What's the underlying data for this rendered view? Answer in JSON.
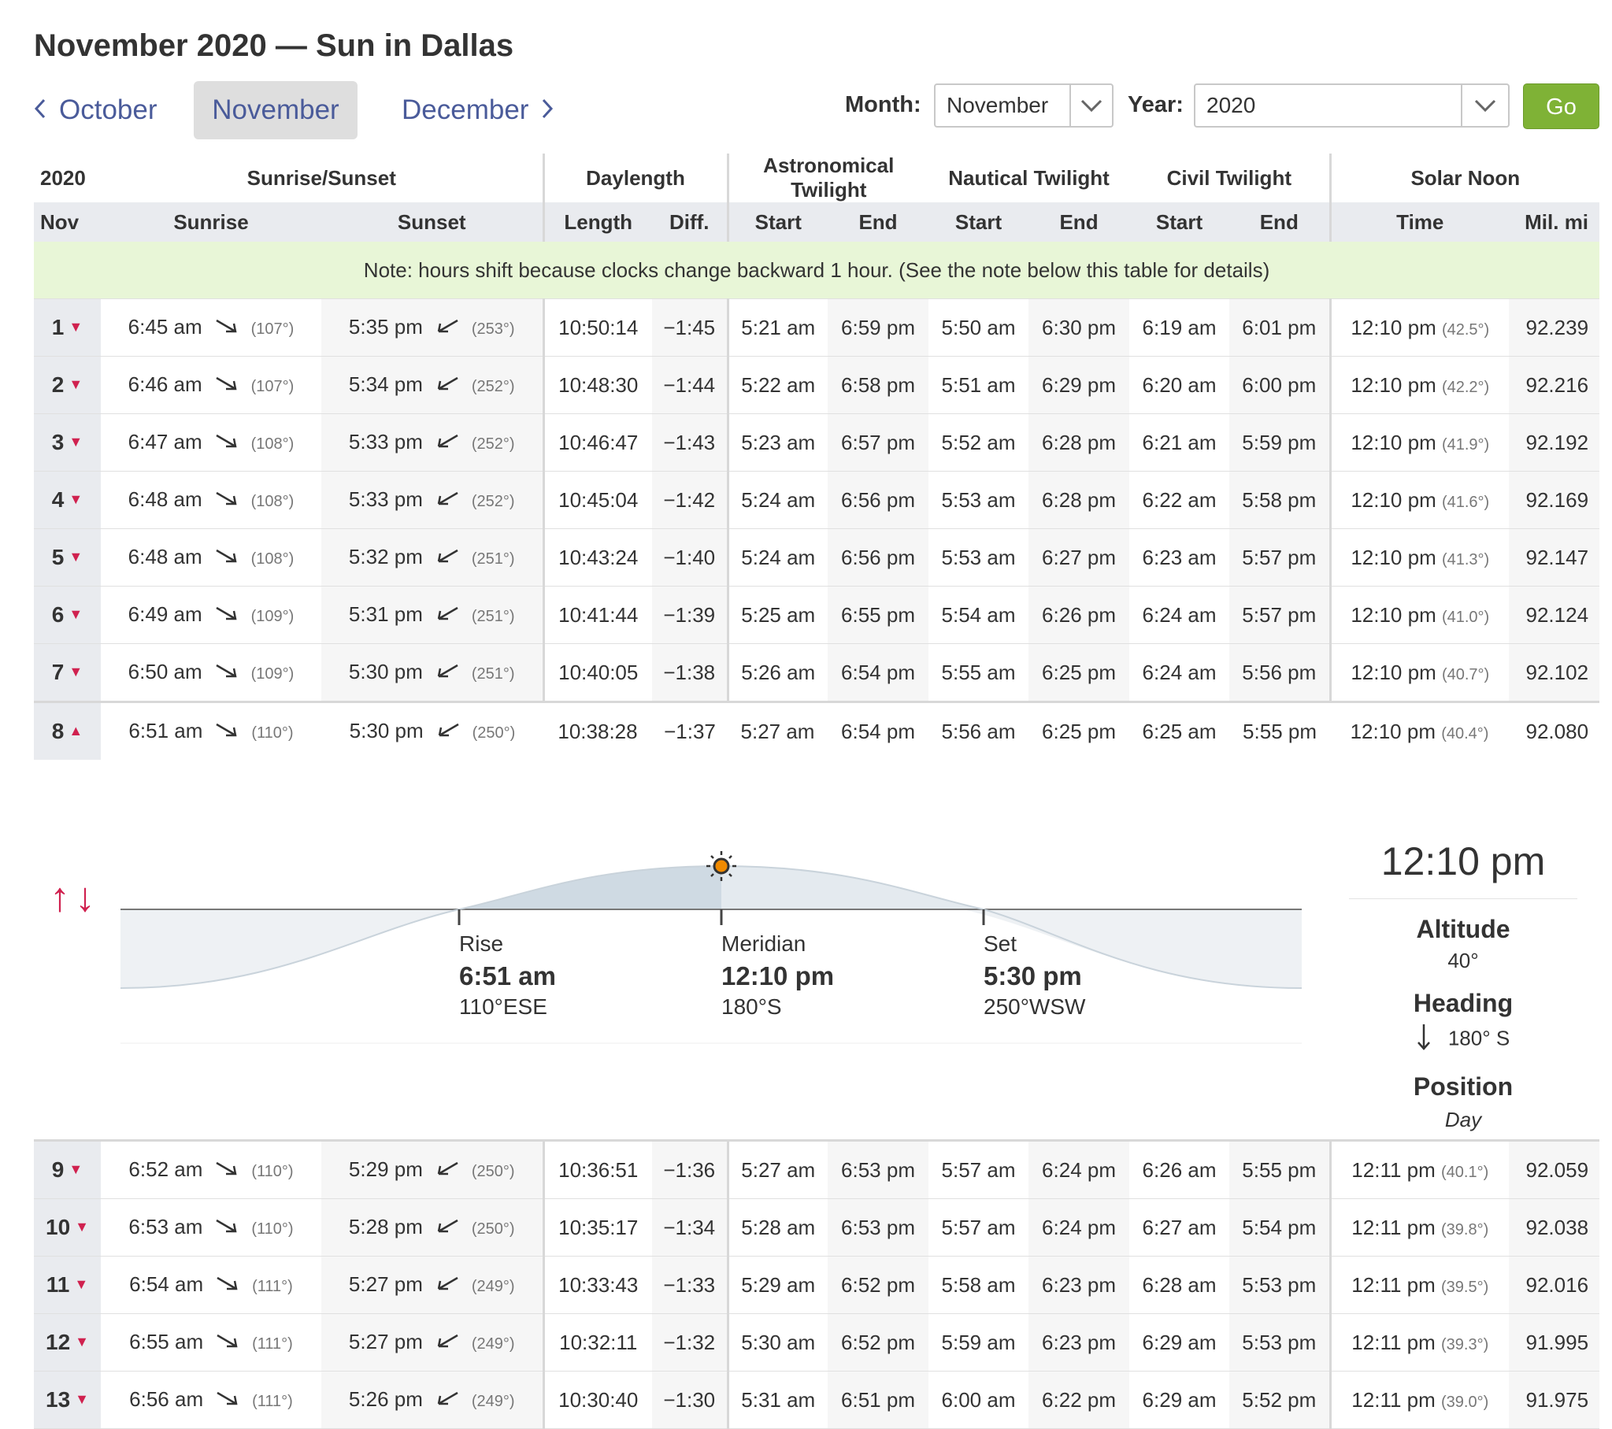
{
  "page_title": "November 2020 — Sun in Dallas",
  "nav": {
    "prev": "October",
    "current": "November",
    "next": "December"
  },
  "picker": {
    "month_label": "Month:",
    "month_value": "November",
    "year_label": "Year:",
    "year_value": "2020",
    "go": "Go"
  },
  "headers": {
    "year": "2020",
    "sunrise_sunset": "Sunrise/Sunset",
    "daylength": "Daylength",
    "astro": "Astronomical Twilight",
    "nautical": "Nautical Twilight",
    "civil": "Civil Twilight",
    "solar_noon": "Solar Noon",
    "month_abbr": "Nov",
    "sunrise": "Sunrise",
    "sunset": "Sunset",
    "length": "Length",
    "diff": "Diff.",
    "start": "Start",
    "end": "End",
    "time": "Time",
    "mil_mi": "Mil. mi"
  },
  "note": "Note: hours shift because clocks change backward 1 hour. (See the note below this table for details)",
  "icons": {
    "sunrise": "sunrise-direction-arrow-icon",
    "sunset": "sunset-direction-arrow-icon",
    "expand": "chevron-down-icon",
    "collapse": "chevron-up-icon",
    "sun": "sun-icon",
    "heading": "down-arrow-icon"
  },
  "colors": {
    "accent": "#d0214f",
    "link": "#4a5b9a",
    "go": "#7fb236",
    "note_bg": "#e8f6d7"
  },
  "rows": [
    {
      "day": "1",
      "sunrise": "6:45 am",
      "rise_az": "(107°)",
      "sunset": "5:35 pm",
      "set_az": "(253°)",
      "length": "10:50:14",
      "diff": "−1:45",
      "astro_start": "5:21 am",
      "astro_end": "6:59 pm",
      "naut_start": "5:50 am",
      "naut_end": "6:30 pm",
      "civil_start": "6:19 am",
      "civil_end": "6:01 pm",
      "noon": "12:10 pm",
      "noon_alt": "(42.5°)",
      "mil": "92.239"
    },
    {
      "day": "2",
      "sunrise": "6:46 am",
      "rise_az": "(107°)",
      "sunset": "5:34 pm",
      "set_az": "(252°)",
      "length": "10:48:30",
      "diff": "−1:44",
      "astro_start": "5:22 am",
      "astro_end": "6:58 pm",
      "naut_start": "5:51 am",
      "naut_end": "6:29 pm",
      "civil_start": "6:20 am",
      "civil_end": "6:00 pm",
      "noon": "12:10 pm",
      "noon_alt": "(42.2°)",
      "mil": "92.216"
    },
    {
      "day": "3",
      "sunrise": "6:47 am",
      "rise_az": "(108°)",
      "sunset": "5:33 pm",
      "set_az": "(252°)",
      "length": "10:46:47",
      "diff": "−1:43",
      "astro_start": "5:23 am",
      "astro_end": "6:57 pm",
      "naut_start": "5:52 am",
      "naut_end": "6:28 pm",
      "civil_start": "6:21 am",
      "civil_end": "5:59 pm",
      "noon": "12:10 pm",
      "noon_alt": "(41.9°)",
      "mil": "92.192"
    },
    {
      "day": "4",
      "sunrise": "6:48 am",
      "rise_az": "(108°)",
      "sunset": "5:33 pm",
      "set_az": "(252°)",
      "length": "10:45:04",
      "diff": "−1:42",
      "astro_start": "5:24 am",
      "astro_end": "6:56 pm",
      "naut_start": "5:53 am",
      "naut_end": "6:28 pm",
      "civil_start": "6:22 am",
      "civil_end": "5:58 pm",
      "noon": "12:10 pm",
      "noon_alt": "(41.6°)",
      "mil": "92.169"
    },
    {
      "day": "5",
      "sunrise": "6:48 am",
      "rise_az": "(108°)",
      "sunset": "5:32 pm",
      "set_az": "(251°)",
      "length": "10:43:24",
      "diff": "−1:40",
      "astro_start": "5:24 am",
      "astro_end": "6:56 pm",
      "naut_start": "5:53 am",
      "naut_end": "6:27 pm",
      "civil_start": "6:23 am",
      "civil_end": "5:57 pm",
      "noon": "12:10 pm",
      "noon_alt": "(41.3°)",
      "mil": "92.147"
    },
    {
      "day": "6",
      "sunrise": "6:49 am",
      "rise_az": "(109°)",
      "sunset": "5:31 pm",
      "set_az": "(251°)",
      "length": "10:41:44",
      "diff": "−1:39",
      "astro_start": "5:25 am",
      "astro_end": "6:55 pm",
      "naut_start": "5:54 am",
      "naut_end": "6:26 pm",
      "civil_start": "6:24 am",
      "civil_end": "5:57 pm",
      "noon": "12:10 pm",
      "noon_alt": "(41.0°)",
      "mil": "92.124"
    },
    {
      "day": "7",
      "sunrise": "6:50 am",
      "rise_az": "(109°)",
      "sunset": "5:30 pm",
      "set_az": "(251°)",
      "length": "10:40:05",
      "diff": "−1:38",
      "astro_start": "5:26 am",
      "astro_end": "6:54 pm",
      "naut_start": "5:55 am",
      "naut_end": "6:25 pm",
      "civil_start": "6:24 am",
      "civil_end": "5:56 pm",
      "noon": "12:10 pm",
      "noon_alt": "(40.7°)",
      "mil": "92.102"
    },
    {
      "day": "8",
      "sunrise": "6:51 am",
      "rise_az": "(110°)",
      "sunset": "5:30 pm",
      "set_az": "(250°)",
      "length": "10:38:28",
      "diff": "−1:37",
      "astro_start": "5:27 am",
      "astro_end": "6:54 pm",
      "naut_start": "5:56 am",
      "naut_end": "6:25 pm",
      "civil_start": "6:25 am",
      "civil_end": "5:55 pm",
      "noon": "12:10 pm",
      "noon_alt": "(40.4°)",
      "mil": "92.080"
    },
    {
      "day": "9",
      "sunrise": "6:52 am",
      "rise_az": "(110°)",
      "sunset": "5:29 pm",
      "set_az": "(250°)",
      "length": "10:36:51",
      "diff": "−1:36",
      "astro_start": "5:27 am",
      "astro_end": "6:53 pm",
      "naut_start": "5:57 am",
      "naut_end": "6:24 pm",
      "civil_start": "6:26 am",
      "civil_end": "5:55 pm",
      "noon": "12:11 pm",
      "noon_alt": "(40.1°)",
      "mil": "92.059"
    },
    {
      "day": "10",
      "sunrise": "6:53 am",
      "rise_az": "(110°)",
      "sunset": "5:28 pm",
      "set_az": "(250°)",
      "length": "10:35:17",
      "diff": "−1:34",
      "astro_start": "5:28 am",
      "astro_end": "6:53 pm",
      "naut_start": "5:57 am",
      "naut_end": "6:24 pm",
      "civil_start": "6:27 am",
      "civil_end": "5:54 pm",
      "noon": "12:11 pm",
      "noon_alt": "(39.8°)",
      "mil": "92.038"
    },
    {
      "day": "11",
      "sunrise": "6:54 am",
      "rise_az": "(111°)",
      "sunset": "5:27 pm",
      "set_az": "(249°)",
      "length": "10:33:43",
      "diff": "−1:33",
      "astro_start": "5:29 am",
      "astro_end": "6:52 pm",
      "naut_start": "5:58 am",
      "naut_end": "6:23 pm",
      "civil_start": "6:28 am",
      "civil_end": "5:53 pm",
      "noon": "12:11 pm",
      "noon_alt": "(39.5°)",
      "mil": "92.016"
    },
    {
      "day": "12",
      "sunrise": "6:55 am",
      "rise_az": "(111°)",
      "sunset": "5:27 pm",
      "set_az": "(249°)",
      "length": "10:32:11",
      "diff": "−1:32",
      "astro_start": "5:30 am",
      "astro_end": "6:52 pm",
      "naut_start": "5:59 am",
      "naut_end": "6:23 pm",
      "civil_start": "6:29 am",
      "civil_end": "5:53 pm",
      "noon": "12:11 pm",
      "noon_alt": "(39.3°)",
      "mil": "91.995"
    },
    {
      "day": "13",
      "sunrise": "6:56 am",
      "rise_az": "(111°)",
      "sunset": "5:26 pm",
      "set_az": "(249°)",
      "length": "10:30:40",
      "diff": "−1:30",
      "astro_start": "5:31 am",
      "astro_end": "6:51 pm",
      "naut_start": "6:00 am",
      "naut_end": "6:22 pm",
      "civil_start": "6:29 am",
      "civil_end": "5:52 pm",
      "noon": "12:11 pm",
      "noon_alt": "(39.0°)",
      "mil": "91.975"
    }
  ],
  "expanded_day_index": 7,
  "detail": {
    "rise_label": "Rise",
    "rise_time": "6:51 am",
    "rise_dir": "110°ESE",
    "meridian_label": "Meridian",
    "meridian_time": "12:10 pm",
    "meridian_dir": "180°S",
    "set_label": "Set",
    "set_time": "5:30 pm",
    "set_dir": "250°WSW",
    "panel_time": "12:10 pm",
    "altitude_label": "Altitude",
    "altitude_value": "40°",
    "heading_label": "Heading",
    "heading_value": "180° S",
    "position_label": "Position",
    "position_value": "Day",
    "updown_glyph": "↑↓"
  }
}
